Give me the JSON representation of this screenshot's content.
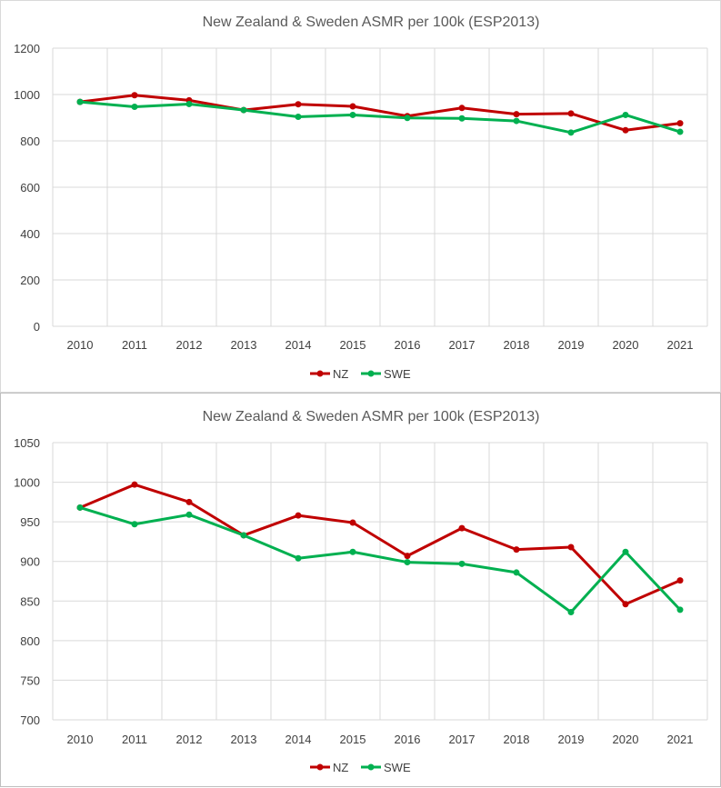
{
  "chart_data": [
    {
      "type": "line",
      "title": "New Zealand & Sweden ASMR per 100k (ESP2013)",
      "xlabel": "",
      "ylabel": "",
      "categories": [
        "2010",
        "2011",
        "2012",
        "2013",
        "2014",
        "2015",
        "2016",
        "2017",
        "2018",
        "2019",
        "2020",
        "2021"
      ],
      "ylim": [
        0,
        1200
      ],
      "yticks": [
        0,
        200,
        400,
        600,
        800,
        1000,
        1200
      ],
      "grid": true,
      "legend_position": "bottom",
      "series": [
        {
          "name": "NZ",
          "color": "#c00000",
          "values": [
            968,
            997,
            975,
            933,
            958,
            949,
            907,
            942,
            915,
            918,
            846,
            876
          ]
        },
        {
          "name": "SWE",
          "color": "#00b050",
          "values": [
            968,
            947,
            959,
            933,
            904,
            912,
            899,
            897,
            886,
            836,
            912,
            839
          ]
        }
      ]
    },
    {
      "type": "line",
      "title": "New Zealand & Sweden ASMR per 100k (ESP2013)",
      "xlabel": "",
      "ylabel": "",
      "categories": [
        "2010",
        "2011",
        "2012",
        "2013",
        "2014",
        "2015",
        "2016",
        "2017",
        "2018",
        "2019",
        "2020",
        "2021"
      ],
      "ylim": [
        700,
        1050
      ],
      "yticks": [
        700,
        750,
        800,
        850,
        900,
        950,
        1000,
        1050
      ],
      "grid": true,
      "legend_position": "bottom",
      "series": [
        {
          "name": "NZ",
          "color": "#c00000",
          "values": [
            968,
            997,
            975,
            933,
            958,
            949,
            907,
            942,
            915,
            918,
            846,
            876
          ]
        },
        {
          "name": "SWE",
          "color": "#00b050",
          "values": [
            968,
            947,
            959,
            933,
            904,
            912,
            899,
            897,
            886,
            836,
            912,
            839
          ]
        }
      ]
    }
  ]
}
